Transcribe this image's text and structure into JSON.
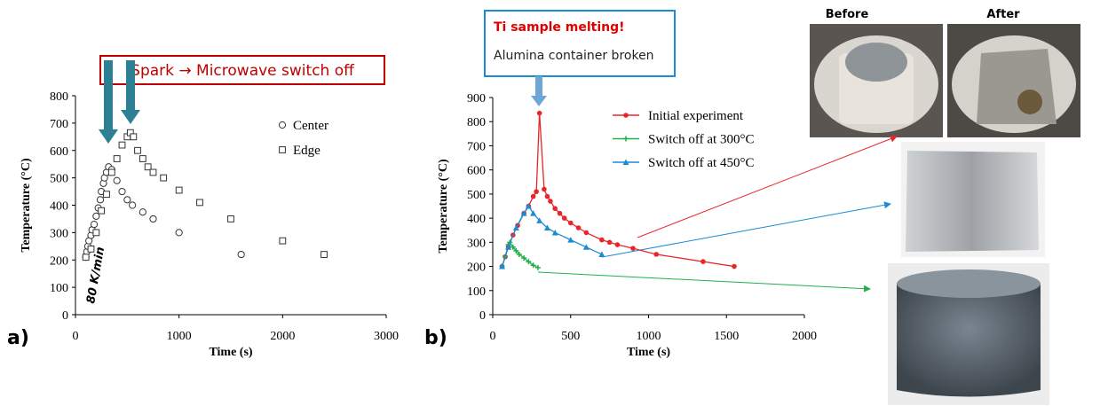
{
  "chart_data": [
    {
      "type": "scatter",
      "panel_label": "a)",
      "x_label": "Time (s)",
      "y_label": "Temperature (°C)",
      "xlim": [
        0,
        3000
      ],
      "xticks": [
        0,
        1000,
        2000,
        3000
      ],
      "ylim": [
        0,
        800
      ],
      "yticks": [
        0,
        100,
        200,
        300,
        400,
        500,
        600,
        700,
        800
      ],
      "legend": "upper right",
      "annotations": [
        "Spark → Microwave switch off",
        "80 K/min"
      ],
      "series": [
        {
          "name": "Center",
          "marker": "circle",
          "color": "#333333",
          "x": [
            100,
            110,
            120,
            130,
            150,
            160,
            180,
            200,
            220,
            240,
            250,
            270,
            280,
            300,
            320,
            350,
            400,
            450,
            500,
            550,
            650,
            750,
            1000,
            1600
          ],
          "values": [
            210,
            230,
            250,
            270,
            290,
            310,
            330,
            360,
            390,
            420,
            450,
            480,
            500,
            520,
            540,
            530,
            490,
            450,
            420,
            400,
            375,
            350,
            300,
            220
          ]
        },
        {
          "name": "Edge",
          "marker": "square",
          "color": "#333333",
          "x": [
            100,
            150,
            200,
            250,
            300,
            350,
            400,
            450,
            500,
            530,
            560,
            600,
            650,
            700,
            750,
            850,
            1000,
            1200,
            1500,
            2000,
            2400
          ],
          "values": [
            210,
            240,
            300,
            380,
            440,
            520,
            570,
            620,
            650,
            665,
            650,
            600,
            570,
            540,
            520,
            500,
            455,
            410,
            350,
            270,
            220
          ]
        }
      ]
    },
    {
      "type": "line",
      "panel_label": "b)",
      "x_label": "Time (s)",
      "y_label": "Temperature (°C)",
      "xlim": [
        0,
        2000
      ],
      "xticks": [
        0,
        500,
        1000,
        1500,
        2000
      ],
      "ylim": [
        0,
        900
      ],
      "yticks": [
        0,
        100,
        200,
        300,
        400,
        500,
        600,
        700,
        800,
        900
      ],
      "legend": "upper right",
      "annotations": [
        "Ti sample melting!",
        "Alumina container broken"
      ],
      "series": [
        {
          "name": "Initial experiment",
          "marker": "dot",
          "color": "#e8262a",
          "x": [
            60,
            80,
            100,
            130,
            160,
            200,
            230,
            260,
            280,
            300,
            330,
            350,
            370,
            400,
            430,
            460,
            500,
            550,
            600,
            700,
            750,
            800,
            900,
            1050,
            1350,
            1550
          ],
          "values": [
            200,
            240,
            280,
            330,
            370,
            420,
            450,
            490,
            510,
            835,
            520,
            490,
            470,
            440,
            420,
            400,
            380,
            360,
            340,
            310,
            300,
            290,
            275,
            250,
            220,
            200
          ]
        },
        {
          "name": "Switch off at 300°C",
          "marker": "plus",
          "color": "#22b04b",
          "x": [
            60,
            80,
            100,
            110,
            130,
            150,
            170,
            200,
            230,
            260,
            290
          ],
          "values": [
            200,
            240,
            290,
            300,
            280,
            265,
            250,
            235,
            220,
            205,
            195
          ]
        },
        {
          "name": "Switch off at 450°C",
          "marker": "triangle",
          "color": "#1b8bd4",
          "x": [
            60,
            100,
            150,
            200,
            230,
            260,
            300,
            350,
            400,
            500,
            600,
            700
          ],
          "values": [
            200,
            280,
            360,
            420,
            450,
            420,
            390,
            360,
            340,
            310,
            280,
            250
          ]
        }
      ]
    }
  ],
  "photos": {
    "before_label": "Before",
    "after_label": "After"
  }
}
